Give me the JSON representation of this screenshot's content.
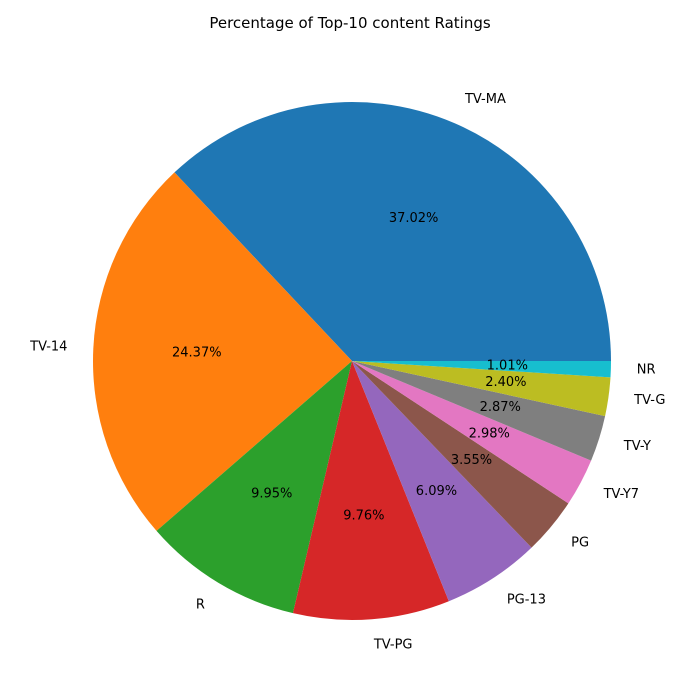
{
  "chart_data": {
    "type": "pie",
    "title": "Percentage of Top-10 content Ratings",
    "categories": [
      "TV-MA",
      "TV-14",
      "R",
      "TV-PG",
      "PG-13",
      "PG",
      "TV-Y7",
      "TV-Y",
      "TV-G",
      "NR"
    ],
    "values": [
      37.02,
      24.37,
      9.95,
      9.76,
      6.09,
      3.55,
      2.98,
      2.87,
      2.4,
      1.01
    ],
    "value_labels": [
      "37.02%",
      "24.37%",
      "9.95%",
      "9.76%",
      "6.09%",
      "3.55%",
      "2.98%",
      "2.87%",
      "2.40%",
      "1.01%"
    ],
    "colors": [
      "#1f77b4",
      "#ff7f0e",
      "#2ca02c",
      "#d62728",
      "#9467bd",
      "#8c564b",
      "#e377c2",
      "#7f7f7f",
      "#bcbd22",
      "#17becf"
    ],
    "start_angle": "0° (3 o'clock), counter-clockwise"
  }
}
